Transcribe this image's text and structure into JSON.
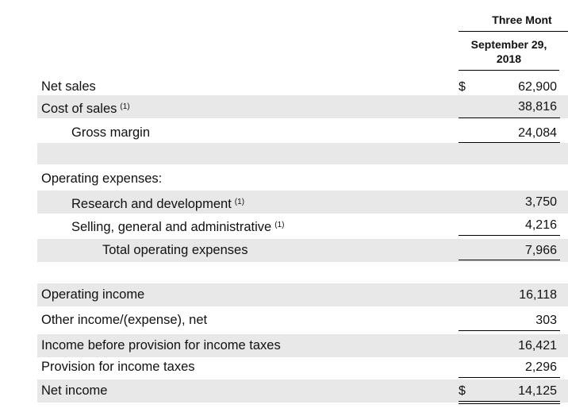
{
  "header": {
    "period": "Three Mont",
    "column": "September 29,\n2018"
  },
  "rows": [
    {
      "label": "Net sales",
      "currency": "$",
      "value": "62,900"
    },
    {
      "label": "Cost of sales",
      "note": "(1)",
      "value": "38,816"
    },
    {
      "label": "Gross margin",
      "value": "24,084"
    },
    {
      "label": "Operating expenses:"
    },
    {
      "label": "Research and development",
      "note": "(1)",
      "value": "3,750"
    },
    {
      "label": "Selling, general and administrative",
      "note": "(1)",
      "value": "4,216"
    },
    {
      "label": "Total operating expenses",
      "value": "7,966"
    },
    {
      "label": "Operating income",
      "value": "16,118"
    },
    {
      "label": "Other income/(expense), net",
      "value": "303"
    },
    {
      "label": "Income before provision for income taxes",
      "value": "16,421"
    },
    {
      "label": "Provision for income taxes",
      "value": "2,296"
    },
    {
      "label": "Net income",
      "currency": "$",
      "value": "14,125"
    }
  ]
}
